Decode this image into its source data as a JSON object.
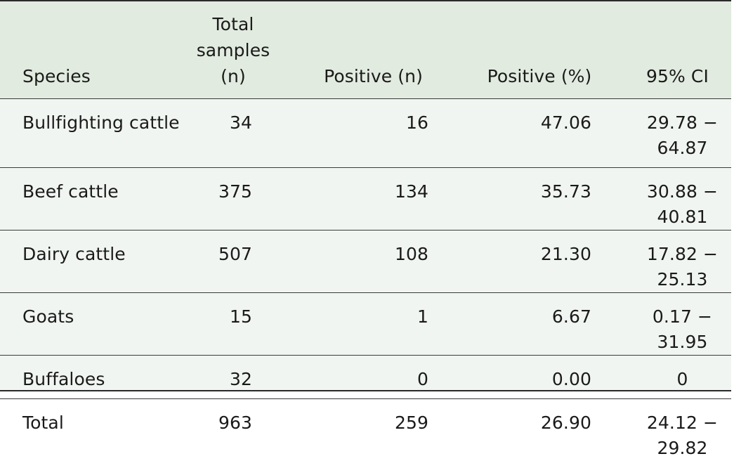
{
  "table": {
    "headers": [
      "Species",
      "Total samples (n)",
      "Positive (n)",
      "Positive (%)",
      "95% CI"
    ],
    "rows": [
      [
        "Bullfighting cattle",
        "34",
        "16",
        "47.06",
        "29.78 − 64.87"
      ],
      [
        "Beef cattle",
        "375",
        "134",
        "35.73",
        "30.88 − 40.81"
      ],
      [
        "Dairy cattle",
        "507",
        "108",
        "21.30",
        "17.82 − 25.13"
      ],
      [
        "Goats",
        "15",
        "1",
        "6.67",
        "0.17 − 31.95"
      ],
      [
        "Buffaloes",
        "32",
        "0",
        "0.00",
        "0"
      ],
      [
        "Total",
        "963",
        "259",
        "26.90",
        "24.12 − 29.82"
      ]
    ]
  },
  "colors": {
    "header_bg": "#e1ebdf",
    "body_bg": "#f1f5f1",
    "rule": "#2a2a2a"
  }
}
